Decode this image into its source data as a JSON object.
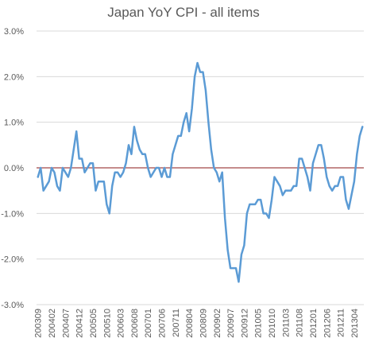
{
  "chart_data": {
    "type": "line",
    "title": "Japan YoY CPI - all items",
    "xlabel": "",
    "ylabel": "",
    "ylim": [
      -3.0,
      3.0
    ],
    "yticks": [
      {
        "value": 3.0,
        "label": "3.0%"
      },
      {
        "value": 2.0,
        "label": "2.0%"
      },
      {
        "value": 1.0,
        "label": "1.0%"
      },
      {
        "value": 0.0,
        "label": "0.0%"
      },
      {
        "value": -1.0,
        "label": "-1.0%"
      },
      {
        "value": -2.0,
        "label": "-2.0%"
      },
      {
        "value": -3.0,
        "label": "-3.0%"
      }
    ],
    "xticks": [
      "200309",
      "200402",
      "200407",
      "200412",
      "200505",
      "200510",
      "200603",
      "200608",
      "200701",
      "200706",
      "200711",
      "200804",
      "200809",
      "200902",
      "200907",
      "200912",
      "201005",
      "201010",
      "201103",
      "201108",
      "201201",
      "201206",
      "201211",
      "201304"
    ],
    "grid": true,
    "legend": "none",
    "line_color": "#5b9bd5",
    "zero_line_color": "#8b1a1a",
    "grid_color": "#d9d9d9",
    "series": [
      {
        "x": [
          "200309",
          "200310",
          "200311",
          "200312",
          "200401",
          "200402",
          "200403",
          "200404",
          "200405",
          "200406",
          "200407",
          "200408",
          "200409",
          "200410",
          "200411",
          "200412",
          "200501",
          "200502",
          "200503",
          "200504",
          "200505",
          "200506",
          "200507",
          "200508",
          "200509",
          "200510",
          "200511",
          "200512",
          "200601",
          "200602",
          "200603",
          "200604",
          "200605",
          "200606",
          "200607",
          "200608",
          "200609",
          "200610",
          "200611",
          "200612",
          "200701",
          "200702",
          "200703",
          "200704",
          "200705",
          "200706",
          "200707",
          "200708",
          "200709",
          "200710",
          "200711",
          "200712",
          "200801",
          "200802",
          "200803",
          "200804",
          "200805",
          "200806",
          "200807",
          "200808",
          "200809",
          "200810",
          "200811",
          "200812",
          "200901",
          "200902",
          "200903",
          "200904",
          "200905",
          "200906",
          "200907",
          "200908",
          "200909",
          "200910",
          "200911",
          "200912",
          "201001",
          "201002",
          "201003",
          "201004",
          "201005",
          "201006",
          "201007",
          "201008",
          "201009",
          "201010",
          "201011",
          "201012",
          "201101",
          "201102",
          "201103",
          "201104",
          "201105",
          "201106",
          "201107",
          "201108",
          "201109",
          "201110",
          "201111",
          "201112",
          "201201",
          "201202",
          "201203",
          "201204",
          "201205",
          "201206",
          "201207",
          "201208",
          "201209",
          "201210",
          "201211",
          "201212",
          "201301",
          "201302",
          "201303",
          "201304",
          "201305",
          "201306",
          "201307"
        ],
        "values": [
          -0.2,
          0.0,
          -0.5,
          -0.4,
          -0.3,
          0.0,
          -0.1,
          -0.4,
          -0.5,
          0.0,
          -0.1,
          -0.2,
          0.0,
          0.4,
          0.8,
          0.2,
          0.2,
          -0.1,
          0.0,
          0.1,
          0.1,
          -0.5,
          -0.3,
          -0.3,
          -0.3,
          -0.8,
          -1.0,
          -0.4,
          -0.1,
          -0.1,
          -0.2,
          -0.1,
          0.1,
          0.5,
          0.3,
          0.9,
          0.6,
          0.4,
          0.3,
          0.3,
          0.0,
          -0.2,
          -0.1,
          0.0,
          0.0,
          -0.2,
          0.0,
          -0.2,
          -0.2,
          0.3,
          0.5,
          0.7,
          0.7,
          1.0,
          1.2,
          0.8,
          1.3,
          2.0,
          2.3,
          2.1,
          2.1,
          1.7,
          1.0,
          0.4,
          0.0,
          -0.1,
          -0.3,
          -0.1,
          -1.1,
          -1.8,
          -2.2,
          -2.2,
          -2.2,
          -2.5,
          -1.9,
          -1.7,
          -1.0,
          -0.8,
          -0.8,
          -0.8,
          -0.7,
          -0.7,
          -1.0,
          -1.0,
          -1.1,
          -0.7,
          -0.2,
          -0.3,
          -0.4,
          -0.6,
          -0.5,
          -0.5,
          -0.5,
          -0.4,
          -0.4,
          0.2,
          0.2,
          0.0,
          -0.2,
          -0.5,
          0.1,
          0.3,
          0.5,
          0.5,
          0.2,
          -0.2,
          -0.4,
          -0.5,
          -0.4,
          -0.4,
          -0.2,
          -0.2,
          -0.7,
          -0.9,
          -0.6,
          -0.3,
          0.3,
          0.7,
          0.9
        ]
      }
    ]
  }
}
